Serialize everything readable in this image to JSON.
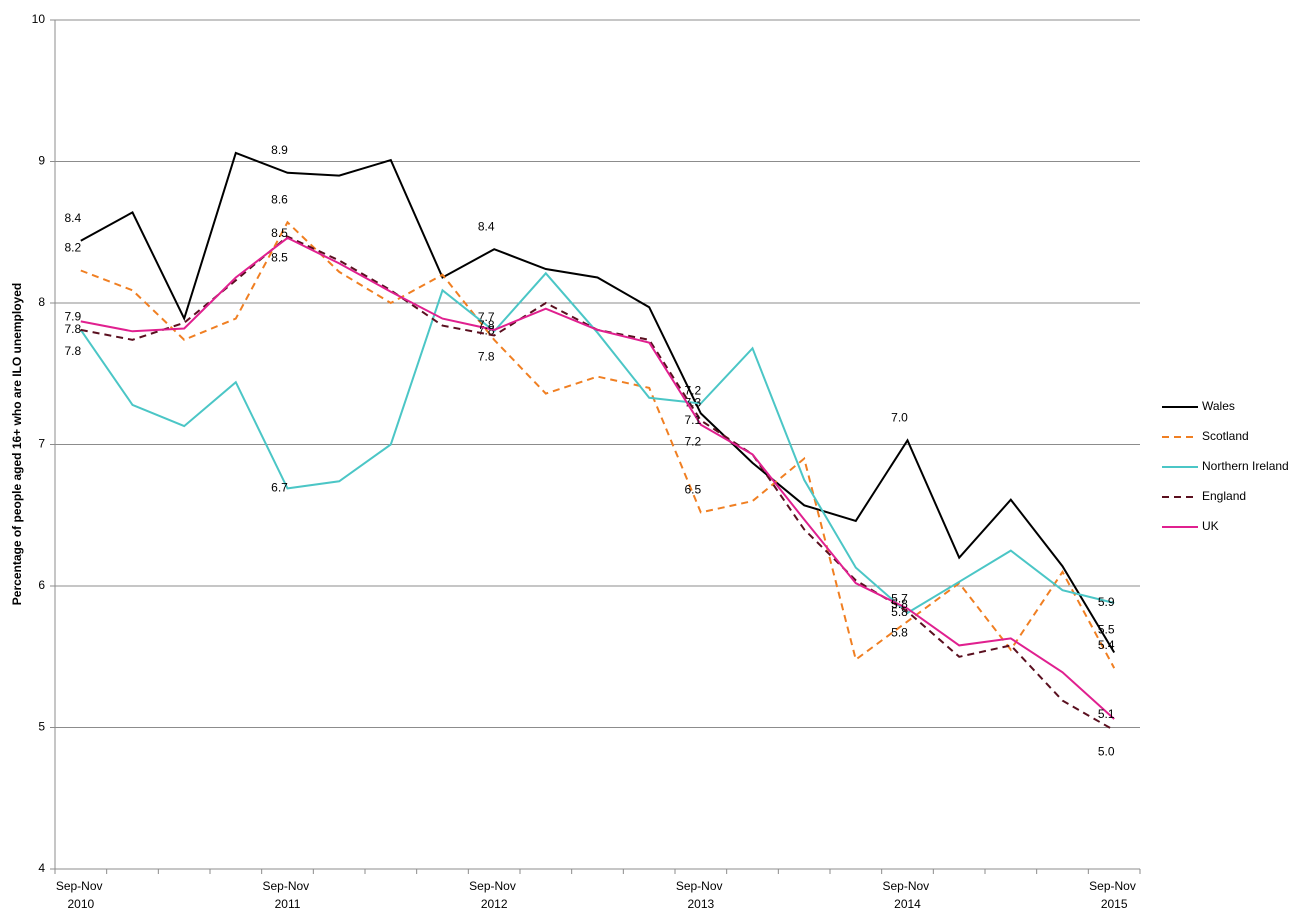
{
  "chart_data": {
    "type": "line",
    "y_label": "Percentage of people aged 16+ who are ILO unemployed",
    "categories": [
      "Sep-Nov 2010",
      null,
      null,
      null,
      "Sep-Nov 2011",
      null,
      null,
      null,
      "Sep-Nov 2012",
      null,
      null,
      null,
      "Sep-Nov 2013",
      null,
      null,
      null,
      "Sep-Nov 2014",
      null,
      null,
      null,
      "Sep-Nov 2015"
    ],
    "ylim": [
      4,
      10
    ],
    "yticks": [
      4,
      5,
      6,
      7,
      8,
      9,
      10
    ],
    "grid": true,
    "legend": "right",
    "series": [
      {
        "name": "Wales",
        "color": "#000000",
        "dashed": false,
        "values": [
          8.44,
          8.64,
          7.89,
          9.06,
          8.92,
          8.9,
          9.01,
          8.18,
          8.38,
          8.24,
          8.18,
          7.97,
          7.22,
          6.87,
          6.57,
          6.46,
          7.03,
          6.2,
          6.61,
          6.14,
          5.53
        ],
        "value_labels": [
          "8.4",
          null,
          null,
          null,
          "8.9",
          null,
          null,
          null,
          "8.4",
          null,
          null,
          null,
          "7.2",
          null,
          null,
          null,
          "7.0",
          null,
          null,
          null,
          "5.5"
        ]
      },
      {
        "name": "Scotland",
        "color": "#f07f22",
        "dashed": true,
        "values": [
          8.23,
          8.09,
          7.74,
          7.89,
          8.57,
          8.22,
          8.0,
          8.2,
          7.74,
          7.36,
          7.48,
          7.4,
          6.52,
          6.6,
          6.9,
          5.48,
          5.75,
          6.02,
          5.55,
          6.1,
          5.42
        ],
        "value_labels": [
          "8.2",
          null,
          null,
          null,
          "8.6",
          null,
          null,
          null,
          "7.7",
          null,
          null,
          null,
          "6.5",
          null,
          null,
          null,
          "5.7",
          null,
          null,
          null,
          "5.4"
        ]
      },
      {
        "name": "Northern Ireland",
        "color": "#4bc6c6",
        "dashed": false,
        "values": [
          7.81,
          7.28,
          7.13,
          7.44,
          6.69,
          6.74,
          7.0,
          8.09,
          7.8,
          8.21,
          7.79,
          7.33,
          7.29,
          7.68,
          6.75,
          6.13,
          5.81,
          6.03,
          6.25,
          5.97,
          5.88
        ],
        "value_labels": [
          "7.8",
          null,
          null,
          null,
          "6.7",
          null,
          null,
          null,
          "7.8",
          null,
          null,
          null,
          "7.3",
          null,
          null,
          null,
          "5.8",
          null,
          null,
          null,
          "5.9"
        ]
      },
      {
        "name": "England",
        "color": "#5a0f1f",
        "dashed": true,
        "values": [
          7.81,
          7.74,
          7.86,
          8.16,
          8.47,
          8.3,
          8.09,
          7.84,
          7.77,
          8.0,
          7.81,
          7.74,
          7.17,
          6.93,
          6.4,
          6.04,
          5.82,
          5.5,
          5.58,
          5.19,
          4.98
        ],
        "value_labels": [
          "7.8",
          null,
          null,
          null,
          "8.5",
          null,
          null,
          null,
          "7.8",
          null,
          null,
          null,
          "7.2",
          null,
          null,
          null,
          "5.8",
          null,
          null,
          null,
          "5.0"
        ]
      },
      {
        "name": "UK",
        "color": "#e0208f",
        "dashed": false,
        "values": [
          7.87,
          7.8,
          7.82,
          8.18,
          8.46,
          8.28,
          8.08,
          7.89,
          7.81,
          7.96,
          7.81,
          7.72,
          7.14,
          6.93,
          6.47,
          6.02,
          5.84,
          5.58,
          5.63,
          5.39,
          5.06
        ],
        "value_labels": [
          "7.9",
          null,
          null,
          null,
          "8.5",
          null,
          null,
          null,
          "7.8",
          null,
          null,
          null,
          "7.1",
          null,
          null,
          null,
          "5.8",
          null,
          null,
          null,
          "5.1"
        ]
      }
    ]
  }
}
